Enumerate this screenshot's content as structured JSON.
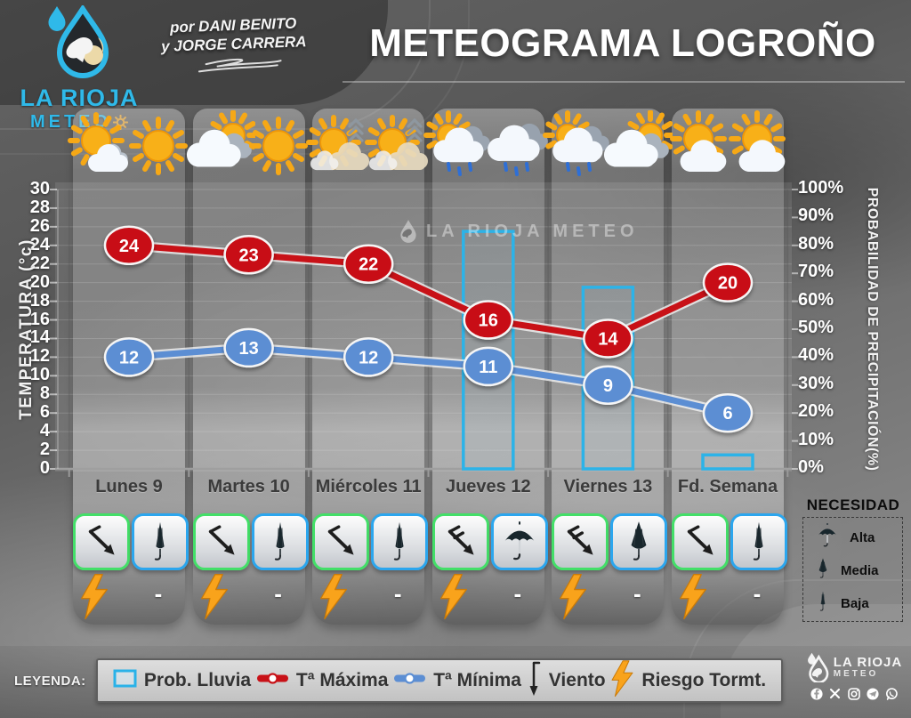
{
  "header": {
    "logo": {
      "title": "LA RIOJA",
      "subtitle": "METEO"
    },
    "authors": {
      "line1": "por DANI BENITO",
      "line2": "y JORGE CARRERA"
    },
    "title": "METEOGRAMA LOGROÑO"
  },
  "chart_data": {
    "type": "line+bar",
    "categories": [
      "Lunes 9",
      "Martes 10",
      "Miércoles 11",
      "Jueves 12",
      "Viernes 13",
      "Fd. Semana"
    ],
    "series": [
      {
        "name": "Tª Máxima",
        "type": "line",
        "color": "#c81117",
        "values": [
          24,
          23,
          22,
          16,
          14,
          20
        ]
      },
      {
        "name": "Tª Mínima",
        "type": "line",
        "color": "#5c8ed3",
        "values": [
          12,
          13,
          12,
          11,
          9,
          6
        ]
      },
      {
        "name": "Prob. Lluvia",
        "type": "bar",
        "color": "#2cb3e8",
        "values": [
          0,
          0,
          0,
          85,
          65,
          5
        ]
      }
    ],
    "y_left": {
      "label": "TEMPERATURA (°c)",
      "min": 0,
      "max": 30,
      "step": 2
    },
    "y_right": {
      "label": "PROBABILIDAD DE PRECIPITACIÓN(%)",
      "min": 0,
      "max": 100,
      "step": 10
    },
    "grid": true,
    "legend_position": "bottom"
  },
  "weather_icons": [
    [
      "sun-small-cloud-icon",
      "sun-icon"
    ],
    [
      "cloud-sun-icon",
      "sun-icon"
    ],
    [
      "sun-haze-icon",
      "sun-haze-icon"
    ],
    [
      "sun-cloud-rain-icon",
      "cloud-rain-icon"
    ],
    [
      "sun-cloud-rain-icon",
      "cloud-sun-icon"
    ],
    [
      "sun-cloud-icon",
      "sun-cloud-icon"
    ]
  ],
  "day_panels": [
    {
      "label": "Lunes 9",
      "wind": "single-barb",
      "need": "baja",
      "storm": "bolt",
      "right_mark": "-"
    },
    {
      "label": "Martes 10",
      "wind": "single-barb",
      "need": "baja",
      "storm": "bolt",
      "right_mark": "-"
    },
    {
      "label": "Miércoles 11",
      "wind": "single-barb",
      "need": "baja",
      "storm": "bolt",
      "right_mark": "-"
    },
    {
      "label": "Jueves 12",
      "wind": "double-barb",
      "need": "alta",
      "storm": "bolt",
      "right_mark": "-"
    },
    {
      "label": "Viernes 13",
      "wind": "double-barb",
      "need": "media",
      "storm": "bolt",
      "right_mark": "-"
    },
    {
      "label": "Fd. Semana",
      "wind": "single-barb",
      "need": "baja",
      "storm": "bolt",
      "right_mark": "-"
    }
  ],
  "necesidad": {
    "title": "NECESIDAD",
    "items": [
      {
        "need": "alta",
        "label": "Alta"
      },
      {
        "need": "media",
        "label": "Media"
      },
      {
        "need": "baja",
        "label": "Baja"
      }
    ]
  },
  "legend": {
    "label": "LEYENDA:",
    "items": [
      {
        "icon": "rain-prob-swatch-icon",
        "text": "Prob. Lluvia"
      },
      {
        "icon": "tmax-line-icon",
        "text": "Tª Máxima"
      },
      {
        "icon": "tmin-line-icon",
        "text": "Tª Mínima"
      },
      {
        "icon": "wind-arrow-icon",
        "text": "Viento"
      },
      {
        "icon": "storm-bolt-icon",
        "text": "Riesgo Tormt."
      }
    ]
  },
  "watermark": "LA RIOJA METEO",
  "footer_logo": {
    "title": "LA RIOJA",
    "subtitle": "METEO",
    "socials": [
      "facebook",
      "x",
      "instagram",
      "telegram",
      "whatsapp"
    ]
  },
  "colors": {
    "tmax": "#c81117",
    "tmin": "#5c8ed3",
    "rain_bar": "#2cb3e8",
    "bolt": "#f9a31b",
    "wind_box_border": "#43df68",
    "umbrella_box_border": "#2ba6ee",
    "brand_cyan": "#2fb9e9"
  }
}
